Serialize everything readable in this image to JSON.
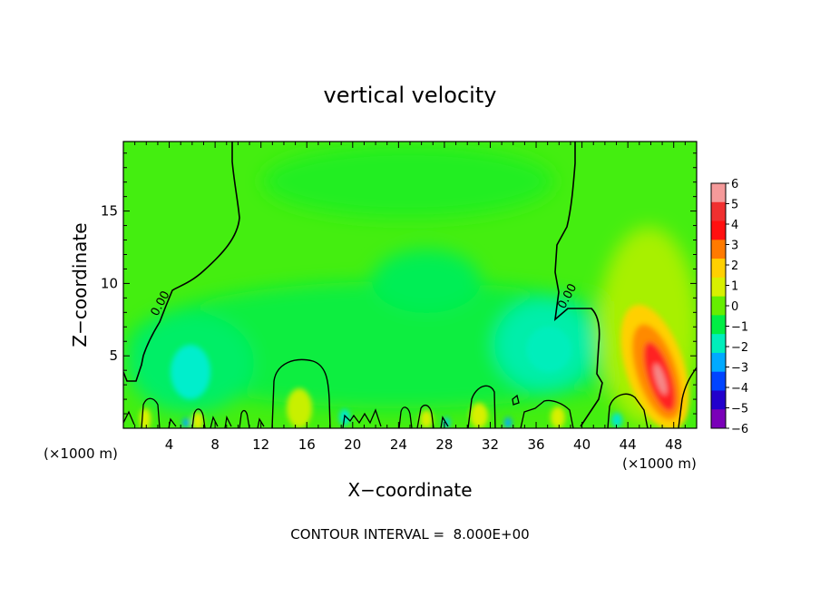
{
  "chart_data": {
    "type": "heatmap",
    "title": "vertical velocity",
    "xlabel": "X−coordinate",
    "ylabel": "Z−coordinate",
    "x_unit_left": "(×1000 m)",
    "x_unit_right": "(×1000 m)",
    "xlim": [
      0,
      50
    ],
    "ylim": [
      0,
      19.8
    ],
    "x_ticks": [
      4,
      8,
      12,
      16,
      20,
      24,
      28,
      32,
      36,
      40,
      44,
      48
    ],
    "y_ticks": [
      5,
      10,
      15
    ],
    "colorbar": {
      "levels": [
        6,
        5,
        4,
        3,
        2,
        1,
        0,
        -1,
        -2,
        -3,
        -4,
        -5,
        -6
      ],
      "labels": [
        "6",
        "5",
        "4",
        "3",
        "2",
        "1",
        "0",
        "−1",
        "−2",
        "−3",
        "−4",
        "−5",
        "−6"
      ],
      "colors": [
        "#f59a9a",
        "#f03030",
        "#ff1010",
        "#ff7a00",
        "#ffd000",
        "#d8f000",
        "#66ee00",
        "#00ee44",
        "#00eebb",
        "#00aaff",
        "#0044ff",
        "#2200cc",
        "#7a00b8"
      ]
    },
    "contour_level": 0.0,
    "contour_labels": [
      {
        "text": "0.00",
        "x": 3.5,
        "z": 8.5
      },
      {
        "text": "0.00",
        "x": 39.0,
        "z": 9.0
      }
    ],
    "features": [
      {
        "name": "updraft",
        "x": 46.5,
        "z": 3.5,
        "peak": 4.0
      },
      {
        "name": "downdraft",
        "x": 6.0,
        "z": 4.0,
        "peak": -1.5
      },
      {
        "name": "downdraft",
        "x": 36.5,
        "z": 6.0,
        "peak": -1.5
      },
      {
        "name": "downdraft",
        "x": 28.0,
        "z": 11.0,
        "peak": -0.5
      }
    ],
    "footnote": "CONTOUR INTERVAL =  8.000E+00"
  }
}
